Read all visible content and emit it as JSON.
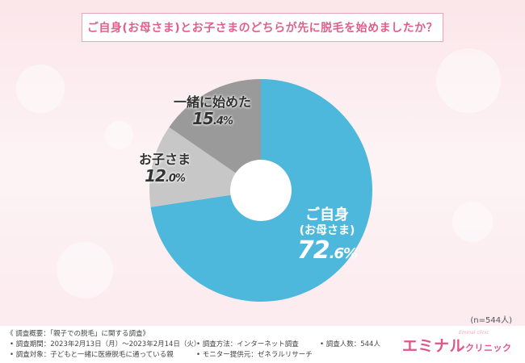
{
  "title": "ご自身(お母さま)とお子さまのどちらが先に脱毛を始めましたか？",
  "n_note": "(n=544人)",
  "chart_data": {
    "type": "pie",
    "donut": true,
    "title": "ご自身(お母さま)とお子さまのどちらが先に脱毛を始めましたか？",
    "slices": [
      {
        "label": "ご自身",
        "sublabel": "(お母さま)",
        "value": 72.6,
        "display": [
          "72",
          ".6%"
        ],
        "color": "#4db8dc"
      },
      {
        "label": "お子さま",
        "sublabel": "",
        "value": 12.0,
        "display": [
          "12",
          ".0%"
        ],
        "color": "#c7c7c7"
      },
      {
        "label": "一緒に始めた",
        "sublabel": "",
        "value": 15.4,
        "display": [
          "15",
          ".4%"
        ],
        "color": "#9a9a9a"
      }
    ]
  },
  "footer": {
    "heading": "《 調査概要：「親子での脱毛」に関する調査》",
    "period": "• 調査期間：2023年2月13日（月）～2023年2月14日（火）",
    "target": "• 調査対象：子どもと一緒に医療脱毛に通っている親",
    "method": "• 調査方法：インターネット調査",
    "provider": "• モニター提供元：ゼネラルリサーチ",
    "count": "• 調査人数：544人"
  },
  "logo": {
    "main": "エミナル",
    "sub": "クリニック",
    "tagline": "Eminal clinic"
  }
}
